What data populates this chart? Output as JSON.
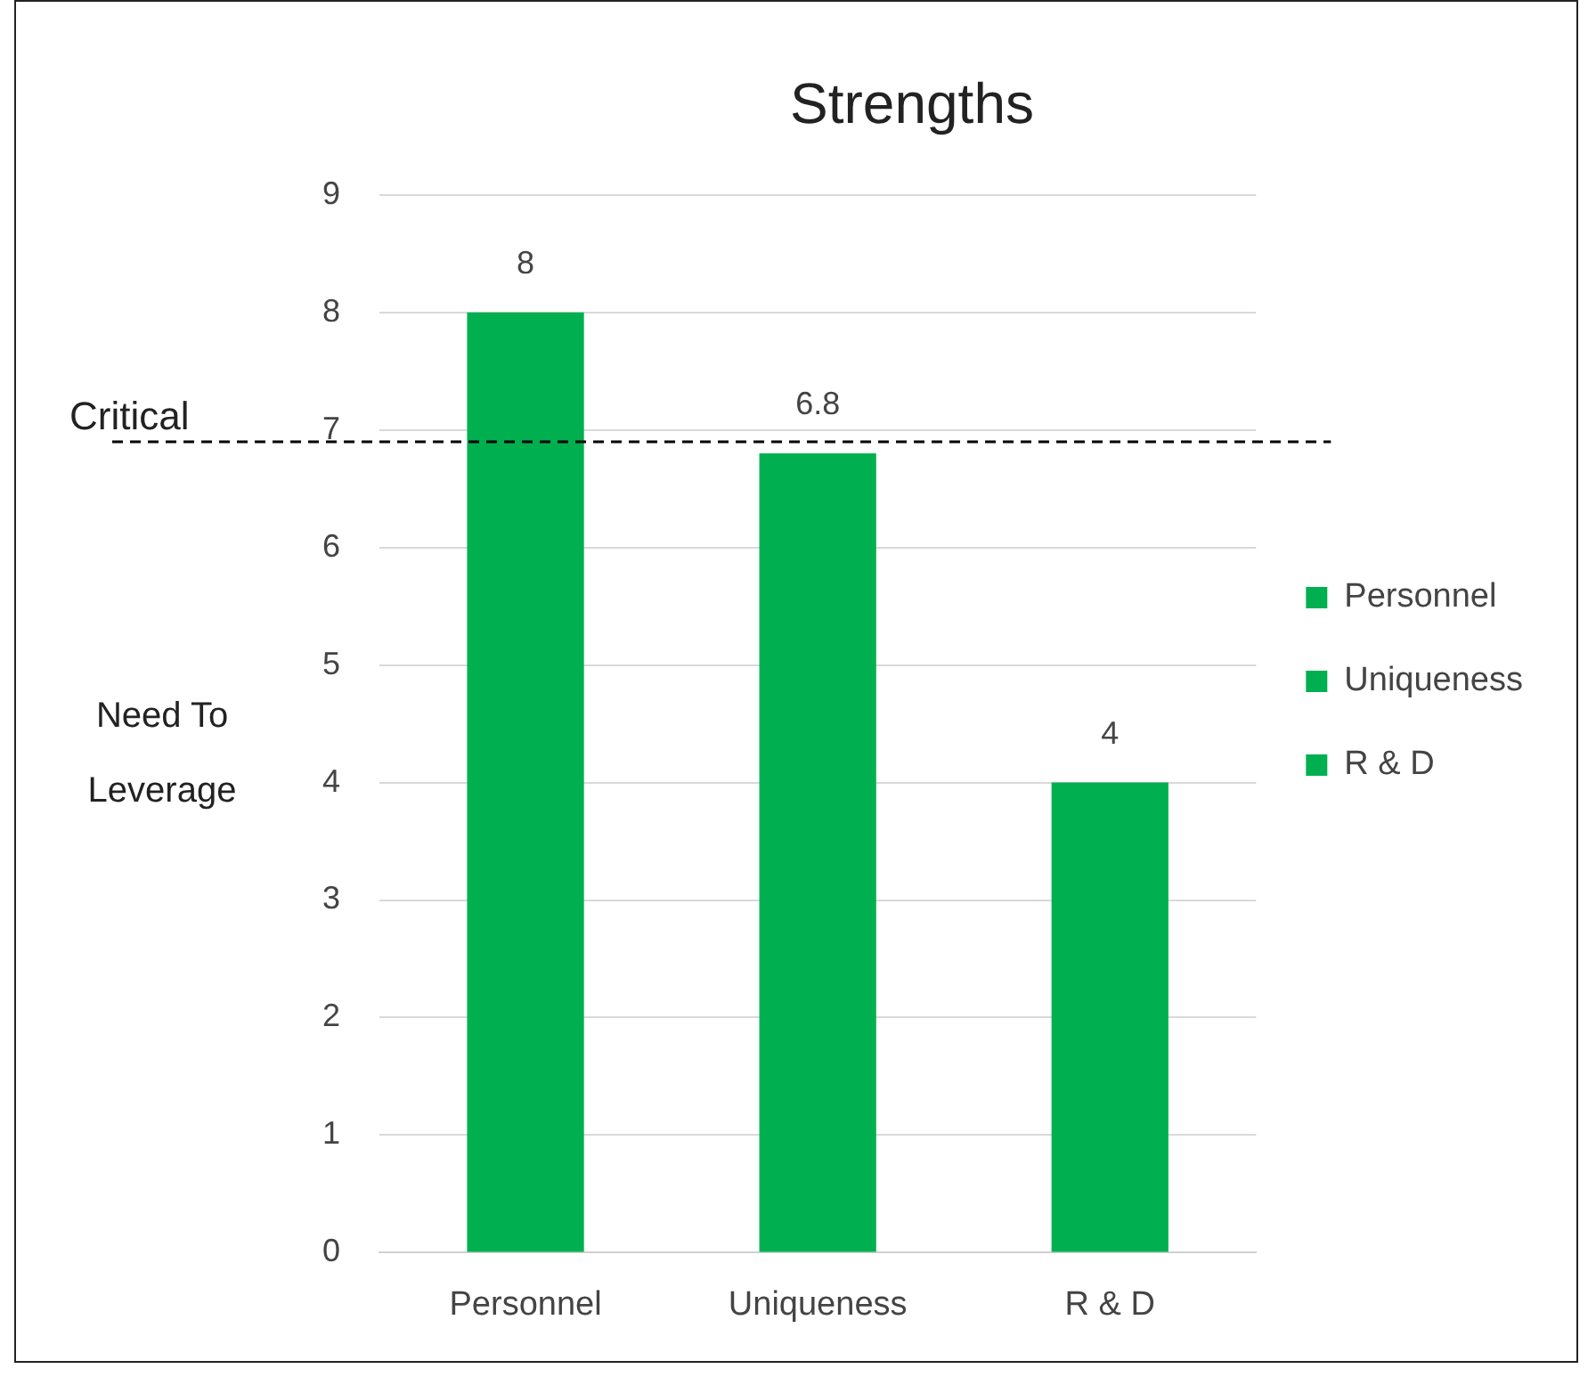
{
  "chart_data": {
    "type": "bar",
    "title": "Strengths",
    "categories": [
      "Personnel",
      "Uniqueness",
      "R & D"
    ],
    "stacked": true,
    "series": [
      {
        "name": "Personnel",
        "color": "#00b050",
        "values": [
          8,
          null,
          null
        ]
      },
      {
        "name": "Uniqueness",
        "color": "#00b050",
        "values": [
          null,
          6.8,
          null
        ]
      },
      {
        "name": "R & D",
        "color": "#00b050",
        "values": [
          null,
          null,
          4
        ]
      }
    ],
    "ylim": [
      0,
      9
    ],
    "yticks": [
      0,
      1,
      2,
      3,
      4,
      5,
      6,
      7,
      8,
      9
    ],
    "grid": "y",
    "legend": "right",
    "data_labels": true,
    "ref_lines": [
      {
        "axis": "y",
        "value": 6.9,
        "label": "Critical",
        "color": "#000000",
        "line_style": "dashed"
      }
    ],
    "annotations": [
      "Need To Leverage"
    ]
  }
}
